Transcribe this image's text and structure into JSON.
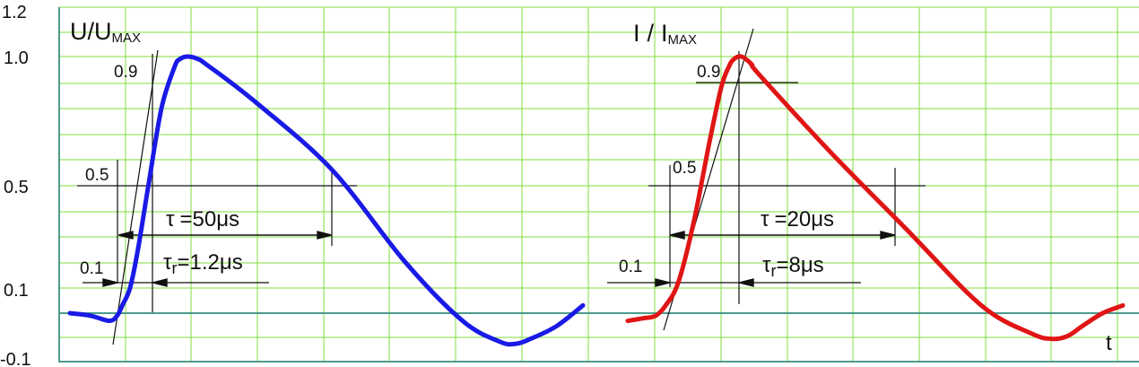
{
  "chart_data": [
    {
      "type": "line",
      "title": "",
      "ylabel_main": "U/U",
      "ylabel_sub": "MAX",
      "xlabel": "",
      "yticks": [
        "1.2",
        "1.0",
        "0.5",
        "0.1",
        "-0.1"
      ],
      "ylim": [
        -0.1,
        1.2
      ],
      "grid": true,
      "series": [
        {
          "color": "#1a1ae6",
          "x": [
            0,
            0.4,
            0.75,
            0.9,
            1.0,
            1.15,
            1.3,
            1.5,
            1.75,
            2.0,
            2.1,
            2.25,
            2.45,
            2.6,
            3.5,
            5.0,
            6.4,
            7.5,
            8.2,
            8.5,
            8.8,
            9.3,
            9.8
          ],
          "values": [
            0.0,
            -0.01,
            -0.03,
            -0.01,
            0.03,
            0.1,
            0.25,
            0.5,
            0.8,
            0.96,
            0.99,
            1.0,
            0.99,
            0.97,
            0.83,
            0.56,
            0.2,
            -0.03,
            -0.11,
            -0.12,
            -0.1,
            -0.05,
            0.03
          ]
        }
      ],
      "annotations": {
        "level_09": "0.9",
        "level_05": "0.5",
        "level_01": "0.1",
        "tau_symbol": "τ",
        "tau_value": "=50μs",
        "tau_r_symbol": "τ",
        "tau_r_sub": "r",
        "tau_r_value": "=1.2μs"
      }
    },
    {
      "type": "line",
      "title": "",
      "ylabel_main": "I",
      "ylabel_slash": "/",
      "ylabel_i": "I",
      "ylabel_sub": "MAX",
      "xlabel": "t",
      "ylim": [
        -0.1,
        1.2
      ],
      "grid": true,
      "series": [
        {
          "color": "#e01515",
          "x": [
            0,
            0.3,
            0.55,
            0.75,
            1.0,
            1.3,
            1.6,
            1.85,
            2.0,
            2.1,
            2.25,
            2.45,
            2.6,
            4.0,
            5.5,
            7.0,
            8.0,
            8.4,
            8.7,
            9.0,
            9.4,
            9.8
          ],
          "values": [
            -0.03,
            -0.02,
            -0.01,
            0.03,
            0.12,
            0.35,
            0.65,
            0.88,
            0.96,
            0.99,
            1.0,
            0.97,
            0.93,
            0.63,
            0.33,
            0.03,
            -0.08,
            -0.1,
            -0.09,
            -0.05,
            0.0,
            0.03
          ]
        }
      ],
      "annotations": {
        "level_09": "0.9",
        "level_05": "0.5",
        "level_01": "0.1",
        "tau_symbol": "τ",
        "tau_value": "=20μs",
        "tau_r_symbol": "τ",
        "tau_r_sub": "r",
        "tau_r_value": "=8μs"
      }
    }
  ],
  "colors": {
    "grid": "#7fdc3c",
    "axis": "#4c9b8b",
    "ink": "#111111"
  }
}
